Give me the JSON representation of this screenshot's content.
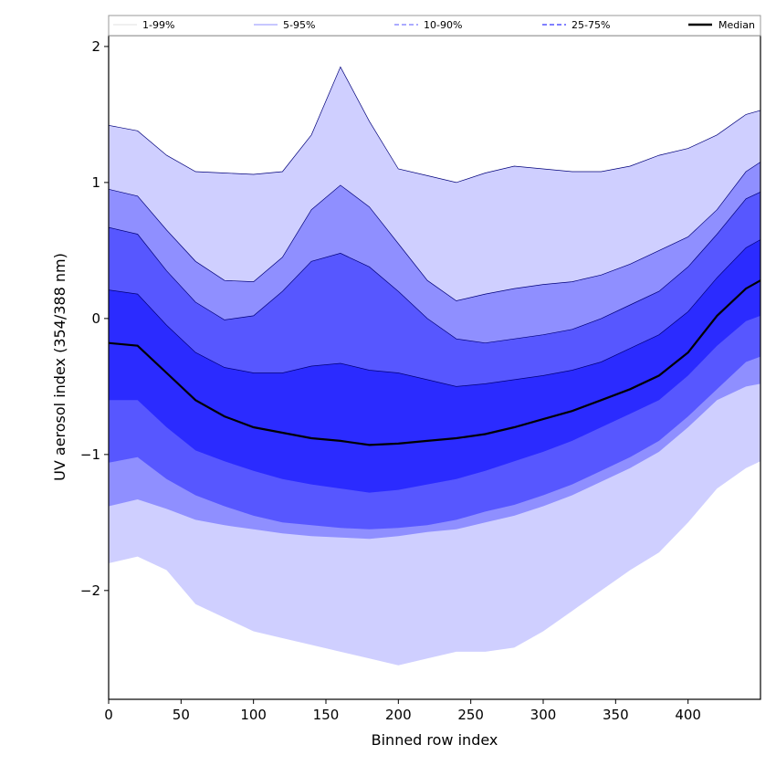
{
  "chart_data": {
    "type": "area",
    "xlabel": "Binned row index",
    "ylabel": "UV aerosol index (354/388 nm)",
    "xlim": [
      0,
      450
    ],
    "ylim": [
      -2.8,
      2.08
    ],
    "xticks": [
      0,
      50,
      100,
      150,
      200,
      250,
      300,
      350,
      400
    ],
    "yticks": [
      -2,
      -1,
      0,
      1,
      2
    ],
    "ytick_labels": [
      "−2",
      "−1",
      "0",
      "1",
      "2"
    ],
    "grid": false,
    "legend_position": "top",
    "x": [
      0,
      20,
      40,
      60,
      80,
      100,
      120,
      140,
      160,
      180,
      200,
      220,
      240,
      260,
      280,
      300,
      320,
      340,
      360,
      380,
      400,
      420,
      440,
      450
    ],
    "bands": [
      {
        "label": "1-99%",
        "color": "#cfcfff",
        "line_style": "solid",
        "lower": [
          -1.8,
          -1.75,
          -1.85,
          -2.1,
          -2.2,
          -2.3,
          -2.35,
          -2.4,
          -2.45,
          -2.5,
          -2.55,
          -2.5,
          -2.45,
          -2.45,
          -2.42,
          -2.3,
          -2.15,
          -2.0,
          -1.85,
          -1.72,
          -1.5,
          -1.25,
          -1.1,
          -1.05
        ],
        "upper": [
          1.42,
          1.38,
          1.2,
          1.08,
          1.07,
          1.06,
          1.08,
          1.35,
          1.85,
          1.45,
          1.1,
          1.05,
          1.0,
          1.07,
          1.12,
          1.1,
          1.08,
          1.08,
          1.12,
          1.2,
          1.25,
          1.35,
          1.5,
          1.53
        ]
      },
      {
        "label": "5-95%",
        "color": "#8f8fff",
        "line_style": "solid",
        "lower": [
          -1.38,
          -1.33,
          -1.4,
          -1.48,
          -1.52,
          -1.55,
          -1.58,
          -1.6,
          -1.61,
          -1.62,
          -1.6,
          -1.57,
          -1.55,
          -1.5,
          -1.45,
          -1.38,
          -1.3,
          -1.2,
          -1.1,
          -0.98,
          -0.8,
          -0.6,
          -0.5,
          -0.48
        ],
        "upper": [
          0.95,
          0.9,
          0.65,
          0.42,
          0.28,
          0.27,
          0.45,
          0.8,
          0.98,
          0.82,
          0.55,
          0.28,
          0.13,
          0.18,
          0.22,
          0.25,
          0.27,
          0.32,
          0.4,
          0.5,
          0.6,
          0.8,
          1.08,
          1.15
        ]
      },
      {
        "label": "10-90%",
        "color": "#5757ff",
        "line_style": "dashed",
        "lower": [
          -1.06,
          -1.02,
          -1.18,
          -1.3,
          -1.38,
          -1.45,
          -1.5,
          -1.52,
          -1.54,
          -1.55,
          -1.54,
          -1.52,
          -1.48,
          -1.42,
          -1.37,
          -1.3,
          -1.22,
          -1.12,
          -1.02,
          -0.9,
          -0.72,
          -0.52,
          -0.32,
          -0.28
        ],
        "upper": [
          0.67,
          0.62,
          0.35,
          0.12,
          -0.01,
          0.02,
          0.2,
          0.42,
          0.48,
          0.38,
          0.2,
          0.0,
          -0.15,
          -0.18,
          -0.15,
          -0.12,
          -0.08,
          0.0,
          0.1,
          0.2,
          0.38,
          0.62,
          0.88,
          0.93
        ]
      },
      {
        "label": "25-75%",
        "color": "#2b2bff",
        "line_style": "dashed",
        "lower": [
          -0.6,
          -0.6,
          -0.8,
          -0.97,
          -1.05,
          -1.12,
          -1.18,
          -1.22,
          -1.25,
          -1.28,
          -1.26,
          -1.22,
          -1.18,
          -1.12,
          -1.05,
          -0.98,
          -0.9,
          -0.8,
          -0.7,
          -0.6,
          -0.42,
          -0.2,
          -0.02,
          0.02
        ],
        "upper": [
          0.21,
          0.18,
          -0.05,
          -0.25,
          -0.36,
          -0.4,
          -0.4,
          -0.35,
          -0.33,
          -0.38,
          -0.4,
          -0.45,
          -0.5,
          -0.48,
          -0.45,
          -0.42,
          -0.38,
          -0.32,
          -0.22,
          -0.12,
          0.05,
          0.3,
          0.52,
          0.58
        ]
      }
    ],
    "median": {
      "label": "Median",
      "color": "#000000",
      "values": [
        -0.18,
        -0.2,
        -0.4,
        -0.6,
        -0.72,
        -0.8,
        -0.84,
        -0.88,
        -0.9,
        -0.93,
        -0.92,
        -0.9,
        -0.88,
        -0.85,
        -0.8,
        -0.74,
        -0.68,
        -0.6,
        -0.52,
        -0.42,
        -0.25,
        0.02,
        0.22,
        0.28
      ]
    },
    "legend": [
      "1-99%",
      "5-95%",
      "10-90%",
      "25-75%",
      "Median"
    ]
  }
}
